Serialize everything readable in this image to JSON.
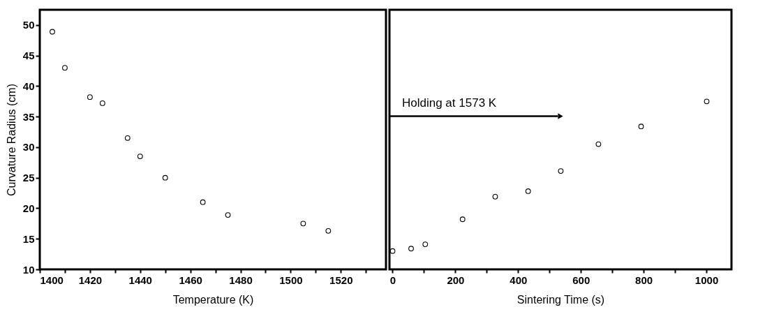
{
  "chart_data": [
    {
      "type": "scatter",
      "xlabel": "Temperature (K)",
      "ylabel": "Curvature Radius (cm)",
      "marker": "circle",
      "x": [
        1405,
        1410,
        1420,
        1425,
        1435,
        1440,
        1450,
        1465,
        1475,
        1505,
        1515
      ],
      "series": [
        {
          "color": "#000000",
          "values": [
            48.9,
            43.0,
            38.2,
            37.2,
            31.5,
            28.5,
            25.0,
            21.0,
            18.9,
            17.5,
            16.3
          ]
        }
      ],
      "xlim": [
        1400,
        1538
      ],
      "xticks": [
        1400,
        {
          "value": 1410,
          "label": null
        },
        1420,
        {
          "value": 1430,
          "label": null
        },
        1440,
        {
          "value": 1450,
          "label": null
        },
        1460,
        {
          "value": 1470,
          "label": null
        },
        1480,
        {
          "value": 1490,
          "label": null
        },
        1500,
        {
          "value": 1510,
          "label": null
        },
        1520,
        {
          "value": 1530,
          "label": null
        }
      ],
      "ylim": [
        10,
        52.5
      ],
      "yticks": [
        10,
        15,
        20,
        25,
        30,
        35,
        40,
        45,
        50
      ]
    },
    {
      "type": "scatter",
      "xlabel": "Sintering Time (s)",
      "marker": "circle",
      "tick_labels": "x",
      "x": [
        0,
        59,
        104,
        223,
        327,
        432,
        536,
        656,
        792,
        1001
      ],
      "series": [
        {
          "color": "#000000",
          "values": [
            13.0,
            13.4,
            14.1,
            18.2,
            21.9,
            22.8,
            26.1,
            30.5,
            33.4,
            37.5
          ]
        }
      ],
      "xlim": [
        -10,
        1080
      ],
      "xticks": [
        0,
        {
          "value": 100,
          "label": null
        },
        200,
        {
          "value": 300,
          "label": null
        },
        400,
        {
          "value": 500,
          "label": null
        },
        600,
        {
          "value": 700,
          "label": null
        },
        800,
        {
          "value": 900,
          "label": null
        },
        1000
      ],
      "ylim": [
        10,
        52.5
      ],
      "yticks": [
        10,
        15,
        20,
        25,
        30,
        35,
        40,
        45,
        50
      ],
      "annotations": [
        "Holding at 1573 K"
      ]
    }
  ]
}
